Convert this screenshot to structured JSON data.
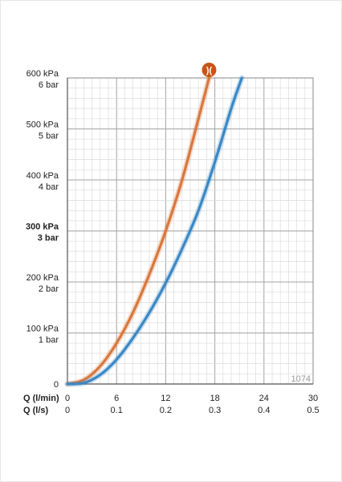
{
  "chart_data": {
    "type": "line",
    "title": "",
    "chart_id": "1074",
    "xlabel_primary": "Q (l/min)",
    "xlabel_secondary": "Q (l/s)",
    "x_ticks_primary": [
      "0",
      "6",
      "12",
      "18",
      "24",
      "30"
    ],
    "x_ticks_secondary": [
      "0",
      "0.1",
      "0.2",
      "0.3",
      "0.4",
      "0.5"
    ],
    "xlim": [
      0,
      30
    ],
    "ylim": [
      0,
      600
    ],
    "y_ticks": [
      {
        "value": 0,
        "kpa": "0",
        "bar": "",
        "bold": false
      },
      {
        "value": 100,
        "kpa": "100 kPa",
        "bar": "1 bar",
        "bold": false
      },
      {
        "value": 200,
        "kpa": "200 kPa",
        "bar": "2 bar",
        "bold": false
      },
      {
        "value": 300,
        "kpa": "300 kPa",
        "bar": "3 bar",
        "bold": true
      },
      {
        "value": 400,
        "kpa": "400 kPa",
        "bar": "4 bar",
        "bold": false
      },
      {
        "value": 500,
        "kpa": "500 kPa",
        "bar": "5 bar",
        "bold": false
      },
      {
        "value": 600,
        "kpa": "600 kPa",
        "bar": "6 bar",
        "bold": false
      }
    ],
    "grid": true,
    "series": [
      {
        "color": "#d9773d",
        "x": [
          0,
          2,
          4,
          6,
          8,
          10,
          12,
          14,
          16,
          17.3
        ],
        "y": [
          0,
          8,
          35,
          80,
          140,
          215,
          300,
          400,
          520,
          600
        ]
      },
      {
        "color": "#3a88c5",
        "x": [
          0,
          2,
          4,
          6,
          8,
          10,
          12,
          14,
          16,
          18,
          20,
          21.3
        ],
        "y": [
          0,
          2,
          18,
          48,
          90,
          140,
          198,
          265,
          340,
          435,
          540,
          600
        ]
      }
    ],
    "marker": {
      "symbol": ")(",
      "color": "#c9541a",
      "x": 17.3
    }
  }
}
